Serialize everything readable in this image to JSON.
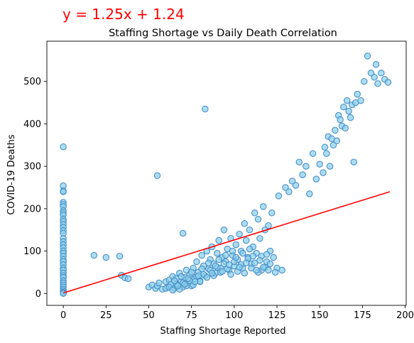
{
  "chart_data": {
    "type": "scatter",
    "title": "Staffing Shortage vs Daily Death Correlation",
    "annotation": "y = 1.25x + 1.24",
    "xlabel": "Staffing Shortage Reported",
    "ylabel": "COVID-19 Deaths",
    "xlim": [
      -9.6,
      200.6
    ],
    "ylim": [
      -28,
      595
    ],
    "xticks": [
      0,
      25,
      50,
      75,
      100,
      125,
      150,
      175,
      200
    ],
    "yticks": [
      0,
      100,
      200,
      300,
      400,
      500
    ],
    "grid": false,
    "legend": "none",
    "marker_fill": "#87ceeb",
    "marker_edge": "#4a90c8",
    "line_color": "#ff0000",
    "regression": {
      "slope": 1.25,
      "intercept": 1.24,
      "x_range": [
        0,
        191
      ]
    },
    "points": [
      [
        0,
        346
      ],
      [
        0,
        254
      ],
      [
        0,
        242
      ],
      [
        0,
        240
      ],
      [
        0,
        215
      ],
      [
        0,
        210
      ],
      [
        0,
        205
      ],
      [
        0,
        195
      ],
      [
        0,
        190
      ],
      [
        0,
        185
      ],
      [
        0,
        175
      ],
      [
        0,
        170
      ],
      [
        0,
        163
      ],
      [
        0,
        156
      ],
      [
        0,
        148
      ],
      [
        0,
        142
      ],
      [
        0,
        130
      ],
      [
        0,
        122
      ],
      [
        0,
        115
      ],
      [
        0,
        108
      ],
      [
        0,
        100
      ],
      [
        0,
        95
      ],
      [
        0,
        88
      ],
      [
        0,
        80
      ],
      [
        0,
        75
      ],
      [
        0,
        68
      ],
      [
        0,
        60
      ],
      [
        0,
        55
      ],
      [
        0,
        48
      ],
      [
        0,
        42
      ],
      [
        0,
        38
      ],
      [
        0,
        30
      ],
      [
        0,
        25
      ],
      [
        0,
        20
      ],
      [
        0,
        15
      ],
      [
        0,
        10
      ],
      [
        0,
        6
      ],
      [
        0,
        3
      ],
      [
        0,
        1
      ],
      [
        0,
        0
      ],
      [
        18,
        90
      ],
      [
        25,
        85
      ],
      [
        33,
        88
      ],
      [
        34,
        43
      ],
      [
        36,
        37
      ],
      [
        38,
        35
      ],
      [
        50,
        15
      ],
      [
        52,
        20
      ],
      [
        54,
        12
      ],
      [
        55,
        18
      ],
      [
        56,
        25
      ],
      [
        58,
        10
      ],
      [
        60,
        28
      ],
      [
        61,
        15
      ],
      [
        62,
        32
      ],
      [
        63,
        22
      ],
      [
        64,
        40
      ],
      [
        65,
        12
      ],
      [
        66,
        35
      ],
      [
        67,
        20
      ],
      [
        68,
        48
      ],
      [
        69,
        28
      ],
      [
        70,
        15
      ],
      [
        71,
        38
      ],
      [
        72,
        55
      ],
      [
        73,
        25
      ],
      [
        74,
        45
      ],
      [
        75,
        18
      ],
      [
        76,
        60
      ],
      [
        77,
        35
      ],
      [
        78,
        75
      ],
      [
        79,
        50
      ],
      [
        80,
        30
      ],
      [
        81,
        90
      ],
      [
        82,
        65
      ],
      [
        83,
        42
      ],
      [
        84,
        100
      ],
      [
        85,
        58
      ],
      [
        86,
        80
      ],
      [
        87,
        110
      ],
      [
        88,
        70
      ],
      [
        89,
        48
      ],
      [
        90,
        95
      ],
      [
        91,
        125
      ],
      [
        92,
        60
      ],
      [
        93,
        85
      ],
      [
        94,
        150
      ],
      [
        95,
        75
      ],
      [
        96,
        105
      ],
      [
        97,
        55
      ],
      [
        98,
        130
      ],
      [
        99,
        90
      ],
      [
        100,
        65
      ],
      [
        101,
        115
      ],
      [
        102,
        80
      ],
      [
        103,
        140
      ],
      [
        104,
        100
      ],
      [
        105,
        60
      ],
      [
        106,
        165
      ],
      [
        107,
        125
      ],
      [
        108,
        85
      ],
      [
        109,
        150
      ],
      [
        110,
        70
      ],
      [
        111,
        110
      ],
      [
        112,
        190
      ],
      [
        113,
        95
      ],
      [
        114,
        175
      ],
      [
        115,
        130
      ],
      [
        116,
        55
      ],
      [
        117,
        205
      ],
      [
        118,
        150
      ],
      [
        119,
        75
      ],
      [
        120,
        160
      ],
      [
        121,
        100
      ],
      [
        122,
        190
      ],
      [
        123,
        85
      ],
      [
        55,
        278
      ],
      [
        70,
        142
      ],
      [
        83,
        435
      ],
      [
        125,
        60
      ],
      [
        126,
        230
      ],
      [
        128,
        55
      ],
      [
        130,
        250
      ],
      [
        132,
        240
      ],
      [
        134,
        265
      ],
      [
        136,
        255
      ],
      [
        138,
        310
      ],
      [
        140,
        280
      ],
      [
        142,
        300
      ],
      [
        144,
        235
      ],
      [
        146,
        330
      ],
      [
        148,
        270
      ],
      [
        150,
        305
      ],
      [
        152,
        285
      ],
      [
        153,
        345
      ],
      [
        154,
        330
      ],
      [
        155,
        370
      ],
      [
        156,
        300
      ],
      [
        157,
        365
      ],
      [
        158,
        350
      ],
      [
        159,
        385
      ],
      [
        160,
        360
      ],
      [
        161,
        420
      ],
      [
        162,
        410
      ],
      [
        163,
        395
      ],
      [
        164,
        440
      ],
      [
        165,
        390
      ],
      [
        166,
        455
      ],
      [
        167,
        430
      ],
      [
        168,
        415
      ],
      [
        169,
        445
      ],
      [
        170,
        310
      ],
      [
        171,
        450
      ],
      [
        172,
        470
      ],
      [
        174,
        455
      ],
      [
        176,
        500
      ],
      [
        178,
        560
      ],
      [
        180,
        520
      ],
      [
        182,
        510
      ],
      [
        183,
        540
      ],
      [
        184,
        495
      ],
      [
        186,
        520
      ],
      [
        188,
        505
      ],
      [
        190,
        498
      ],
      [
        60,
        12
      ],
      [
        62,
        15
      ],
      [
        64,
        8
      ],
      [
        66,
        22
      ],
      [
        68,
        10
      ],
      [
        70,
        25
      ],
      [
        72,
        18
      ],
      [
        74,
        30
      ],
      [
        76,
        20
      ],
      [
        78,
        40
      ],
      [
        80,
        28
      ],
      [
        82,
        45
      ],
      [
        84,
        38
      ],
      [
        86,
        55
      ],
      [
        88,
        42
      ],
      [
        90,
        62
      ],
      [
        92,
        50
      ],
      [
        94,
        70
      ],
      [
        96,
        58
      ],
      [
        98,
        45
      ],
      [
        100,
        75
      ],
      [
        102,
        52
      ],
      [
        104,
        68
      ],
      [
        106,
        48
      ],
      [
        108,
        82
      ],
      [
        110,
        60
      ],
      [
        112,
        72
      ],
      [
        114,
        50
      ],
      [
        116,
        88
      ],
      [
        118,
        62
      ],
      [
        120,
        55
      ],
      [
        65,
        30
      ],
      [
        67,
        18
      ],
      [
        69,
        40
      ],
      [
        71,
        22
      ],
      [
        73,
        35
      ],
      [
        75,
        50
      ],
      [
        77,
        28
      ],
      [
        79,
        42
      ],
      [
        81,
        58
      ],
      [
        85,
        72
      ],
      [
        87,
        48
      ],
      [
        89,
        65
      ],
      [
        91,
        80
      ],
      [
        93,
        52
      ],
      [
        95,
        90
      ],
      [
        97,
        68
      ],
      [
        99,
        100
      ],
      [
        101,
        85
      ],
      [
        103,
        62
      ],
      [
        105,
        95
      ],
      [
        107,
        72
      ],
      [
        109,
        105
      ],
      [
        111,
        88
      ],
      [
        113,
        55
      ],
      [
        115,
        78
      ],
      [
        117,
        62
      ],
      [
        119,
        92
      ],
      [
        121,
        70
      ],
      [
        124,
        50
      ]
    ]
  }
}
